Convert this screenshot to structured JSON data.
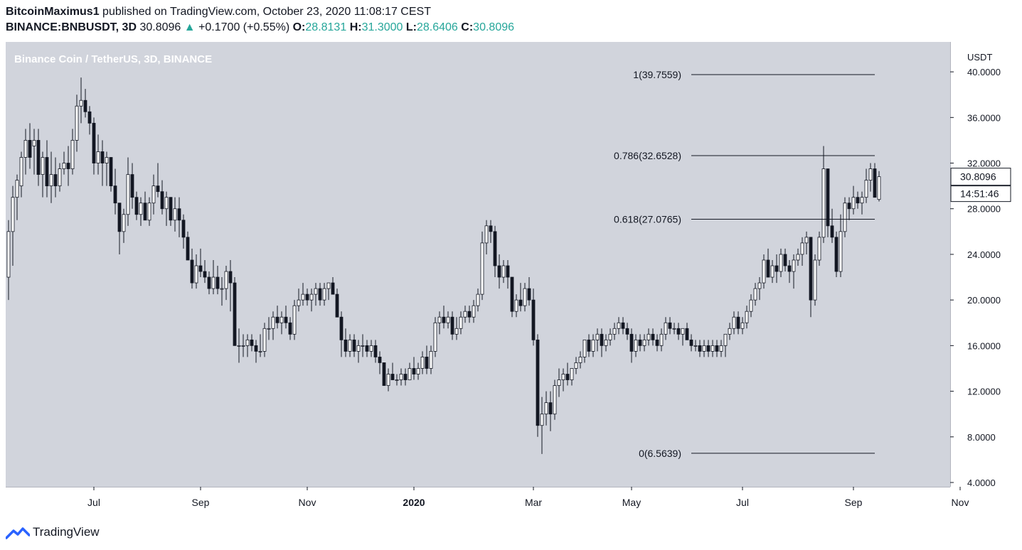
{
  "header": {
    "author": "BitcoinMaximus1",
    "published": "published on TradingView.com, October 23, 2020 11:08:17 CEST",
    "symbol": "BINANCE:BNBUSDT, 3D",
    "last": "30.8096",
    "arrow": "▲",
    "change": "+0.1700 (+0.55%)",
    "o_label": "O:",
    "o_value": "28.8131",
    "h_label": "H:",
    "h_value": "31.3000",
    "l_label": "L:",
    "l_value": "28.6406",
    "c_label": "C:",
    "c_value": "30.8096"
  },
  "footer": {
    "brand": "TradingView"
  },
  "colors": {
    "plot_bg": "#d1d4dc",
    "axis_bg": "#ffffff",
    "candle_up": "#ffffff",
    "candle_down": "#131722",
    "wick": "#131722",
    "text": "#131722",
    "legend_text": "#ffffff",
    "ohlc_value": "#26a69a"
  },
  "chart_data": {
    "type": "candlestick",
    "legend_title": "Binance Coin / TetherUS, 3D, BINANCE",
    "currency": "USDT",
    "ylim": [
      4,
      42
    ],
    "y_ticks": [
      4,
      8,
      12,
      16,
      20,
      24,
      28,
      32,
      36,
      40
    ],
    "y_tick_labels": [
      "4.0000",
      "8.0000",
      "12.0000",
      "16.0000",
      "20.0000",
      "24.0000",
      "28.0000",
      "32.0000",
      "36.0000",
      "40.0000"
    ],
    "x_tick_labels": [
      "Jul",
      "Sep",
      "Nov",
      "2020",
      "Mar",
      "May",
      "Jul",
      "Sep",
      "Nov"
    ],
    "x_tick_bar_index": [
      20,
      45,
      70,
      95,
      123,
      146,
      172,
      198,
      223
    ],
    "price_label": "30.8096",
    "countdown_label": "14:51:46",
    "fib_levels": [
      {
        "label": "1(39.7559)",
        "value": 39.7559
      },
      {
        "label": "0.786(32.6528)",
        "value": 32.6528
      },
      {
        "label": "0.618(27.0765)",
        "value": 27.0765
      },
      {
        "label": "0(6.5639)",
        "value": 6.5639
      }
    ],
    "fib_start_bar": 160,
    "fib_end_bar": 203,
    "candles": [
      [
        22.0,
        27.0,
        20.0,
        26.0
      ],
      [
        26.0,
        30.0,
        23.0,
        29.0
      ],
      [
        29.0,
        31.0,
        27.0,
        30.5
      ],
      [
        30.0,
        33.0,
        29.0,
        32.5
      ],
      [
        32.5,
        35.0,
        31.0,
        34.0
      ],
      [
        34.0,
        35.5,
        31.5,
        32.5
      ],
      [
        33.5,
        35.0,
        31.0,
        34.0
      ],
      [
        34.0,
        35.0,
        30.0,
        31.0
      ],
      [
        31.0,
        33.0,
        29.0,
        32.5
      ],
      [
        32.5,
        34.0,
        29.0,
        30.0
      ],
      [
        30.0,
        33.0,
        28.5,
        31.0
      ],
      [
        31.0,
        32.5,
        29.0,
        30.0
      ],
      [
        30.0,
        32.0,
        29.5,
        31.5
      ],
      [
        31.5,
        33.0,
        31.0,
        32.0
      ],
      [
        32.0,
        33.5,
        30.0,
        31.5
      ],
      [
        31.5,
        35.0,
        31.0,
        34.0
      ],
      [
        34.0,
        38.0,
        33.0,
        37.0
      ],
      [
        37.0,
        39.5,
        35.5,
        37.5
      ],
      [
        37.5,
        38.5,
        36.0,
        36.5
      ],
      [
        36.5,
        37.0,
        34.5,
        35.5
      ],
      [
        35.5,
        36.0,
        31.0,
        32.0
      ],
      [
        32.0,
        34.5,
        31.0,
        33.0
      ],
      [
        33.0,
        34.0,
        30.0,
        32.0
      ],
      [
        32.0,
        33.0,
        30.0,
        32.5
      ],
      [
        32.5,
        32.5,
        29.5,
        30.0
      ],
      [
        30.0,
        31.5,
        27.5,
        28.5
      ],
      [
        28.5,
        28.5,
        24.0,
        26.0
      ],
      [
        26.0,
        28.0,
        25.0,
        27.5
      ],
      [
        27.5,
        32.5,
        26.5,
        31.0
      ],
      [
        31.0,
        32.0,
        28.0,
        29.0
      ],
      [
        29.0,
        29.5,
        27.0,
        27.5
      ],
      [
        27.5,
        29.0,
        26.5,
        28.5
      ],
      [
        28.5,
        29.5,
        27.0,
        27.0
      ],
      [
        27.0,
        29.0,
        26.5,
        28.5
      ],
      [
        28.5,
        31.0,
        27.5,
        30.0
      ],
      [
        30.0,
        32.0,
        29.0,
        29.5
      ],
      [
        29.5,
        30.5,
        27.5,
        28.0
      ],
      [
        28.0,
        29.5,
        26.5,
        29.0
      ],
      [
        29.0,
        29.0,
        26.5,
        27.0
      ],
      [
        27.0,
        29.0,
        26.0,
        28.0
      ],
      [
        28.0,
        29.0,
        25.5,
        27.0
      ],
      [
        27.0,
        27.5,
        24.5,
        25.5
      ],
      [
        25.5,
        26.0,
        23.5,
        23.5
      ],
      [
        23.5,
        24.5,
        21.0,
        21.5
      ],
      [
        21.5,
        24.0,
        21.0,
        23.0
      ],
      [
        23.0,
        24.5,
        22.0,
        22.5
      ],
      [
        22.5,
        23.5,
        21.5,
        22.0
      ],
      [
        22.0,
        22.5,
        20.5,
        21.0
      ],
      [
        21.0,
        23.5,
        20.5,
        22.0
      ],
      [
        22.0,
        23.0,
        20.5,
        21.0
      ],
      [
        21.0,
        22.0,
        19.5,
        21.0
      ],
      [
        21.0,
        23.0,
        20.0,
        22.5
      ],
      [
        22.5,
        23.5,
        19.0,
        21.5
      ],
      [
        21.5,
        22.0,
        16.0,
        16.0
      ],
      [
        16.0,
        17.5,
        14.5,
        16.0
      ],
      [
        16.0,
        17.0,
        15.0,
        16.0
      ],
      [
        16.0,
        17.0,
        15.0,
        16.5
      ],
      [
        16.5,
        17.0,
        15.5,
        16.0
      ],
      [
        16.0,
        16.5,
        14.5,
        15.5
      ],
      [
        15.5,
        17.0,
        15.0,
        15.5
      ],
      [
        15.5,
        18.0,
        15.0,
        17.5
      ],
      [
        17.5,
        18.5,
        16.5,
        17.5
      ],
      [
        17.5,
        19.0,
        16.5,
        18.5
      ],
      [
        18.5,
        19.5,
        17.5,
        18.0
      ],
      [
        18.0,
        19.0,
        17.0,
        18.5
      ],
      [
        18.5,
        19.5,
        17.5,
        18.0
      ],
      [
        18.0,
        18.5,
        16.5,
        17.0
      ],
      [
        17.0,
        20.0,
        16.5,
        19.5
      ],
      [
        19.5,
        21.0,
        19.0,
        20.0
      ],
      [
        20.0,
        21.5,
        19.5,
        20.5
      ],
      [
        20.5,
        21.0,
        19.5,
        20.0
      ],
      [
        20.0,
        21.0,
        19.0,
        20.5
      ],
      [
        20.5,
        21.5,
        19.5,
        21.0
      ],
      [
        21.0,
        21.5,
        19.5,
        20.0
      ],
      [
        20.0,
        21.5,
        19.5,
        21.0
      ],
      [
        21.0,
        21.5,
        20.0,
        21.5
      ],
      [
        21.5,
        22.0,
        20.5,
        20.5
      ],
      [
        20.5,
        21.0,
        18.5,
        18.5
      ],
      [
        18.5,
        19.0,
        15.0,
        16.5
      ],
      [
        16.5,
        17.5,
        15.0,
        15.5
      ],
      [
        15.5,
        17.0,
        15.0,
        16.5
      ],
      [
        16.5,
        17.0,
        15.0,
        15.5
      ],
      [
        15.5,
        16.5,
        14.5,
        16.0
      ],
      [
        16.0,
        17.0,
        15.0,
        16.0
      ],
      [
        16.0,
        16.5,
        15.0,
        15.5
      ],
      [
        15.5,
        16.5,
        15.0,
        16.0
      ],
      [
        16.0,
        16.5,
        14.5,
        15.0
      ],
      [
        15.0,
        15.5,
        13.5,
        14.5
      ],
      [
        14.5,
        14.5,
        12.5,
        12.5
      ],
      [
        12.5,
        14.0,
        12.0,
        13.5
      ],
      [
        13.5,
        14.5,
        13.0,
        13.0
      ],
      [
        13.0,
        13.5,
        12.5,
        13.0
      ],
      [
        13.0,
        14.0,
        12.5,
        13.5
      ],
      [
        13.5,
        14.0,
        12.5,
        13.0
      ],
      [
        13.0,
        14.5,
        13.0,
        14.0
      ],
      [
        14.0,
        15.0,
        13.0,
        13.5
      ],
      [
        13.5,
        14.5,
        13.0,
        14.0
      ],
      [
        14.0,
        15.5,
        13.5,
        15.0
      ],
      [
        15.0,
        16.0,
        13.5,
        14.0
      ],
      [
        14.0,
        16.0,
        13.5,
        15.5
      ],
      [
        15.5,
        18.5,
        15.0,
        18.0
      ],
      [
        18.0,
        19.0,
        17.0,
        18.5
      ],
      [
        18.5,
        19.5,
        17.5,
        18.0
      ],
      [
        18.0,
        19.0,
        17.5,
        18.5
      ],
      [
        18.5,
        19.0,
        16.5,
        17.0
      ],
      [
        17.0,
        18.5,
        16.5,
        17.5
      ],
      [
        17.5,
        19.0,
        17.0,
        18.5
      ],
      [
        18.5,
        19.5,
        18.0,
        19.0
      ],
      [
        19.0,
        19.5,
        18.0,
        18.5
      ],
      [
        18.5,
        20.0,
        18.0,
        19.5
      ],
      [
        19.5,
        21.0,
        19.0,
        20.5
      ],
      [
        20.5,
        26.0,
        20.0,
        25.0
      ],
      [
        25.0,
        27.0,
        24.0,
        26.5
      ],
      [
        26.5,
        27.0,
        25.0,
        26.0
      ],
      [
        26.0,
        26.5,
        22.0,
        23.0
      ],
      [
        23.0,
        24.0,
        21.0,
        22.0
      ],
      [
        22.0,
        23.5,
        21.5,
        23.0
      ],
      [
        23.0,
        23.5,
        21.0,
        22.0
      ],
      [
        22.0,
        22.0,
        18.5,
        19.0
      ],
      [
        19.0,
        20.5,
        18.5,
        20.0
      ],
      [
        20.0,
        21.5,
        19.0,
        19.5
      ],
      [
        19.5,
        21.5,
        19.0,
        21.0
      ],
      [
        21.0,
        22.0,
        19.5,
        20.0
      ],
      [
        20.0,
        21.0,
        16.0,
        16.5
      ],
      [
        16.5,
        17.0,
        8.0,
        9.0
      ],
      [
        9.0,
        11.5,
        6.5,
        10.0
      ],
      [
        10.0,
        12.0,
        9.0,
        11.0
      ],
      [
        11.0,
        12.0,
        8.5,
        10.0
      ],
      [
        10.0,
        13.0,
        9.5,
        12.5
      ],
      [
        12.5,
        14.0,
        11.5,
        13.0
      ],
      [
        13.0,
        14.0,
        12.0,
        13.5
      ],
      [
        13.5,
        14.5,
        12.5,
        13.0
      ],
      [
        13.0,
        14.0,
        12.5,
        14.0
      ],
      [
        14.0,
        15.0,
        13.5,
        14.5
      ],
      [
        14.5,
        15.5,
        14.0,
        15.0
      ],
      [
        15.0,
        16.5,
        14.5,
        16.5
      ],
      [
        16.5,
        17.0,
        15.0,
        15.5
      ],
      [
        15.5,
        17.0,
        15.0,
        16.5
      ],
      [
        16.5,
        17.5,
        15.5,
        17.0
      ],
      [
        17.0,
        17.5,
        15.0,
        16.0
      ],
      [
        16.0,
        17.0,
        15.5,
        16.5
      ],
      [
        16.5,
        17.5,
        16.0,
        17.0
      ],
      [
        17.0,
        18.0,
        16.5,
        17.5
      ],
      [
        17.5,
        18.5,
        17.0,
        18.0
      ],
      [
        18.0,
        18.5,
        17.0,
        17.5
      ],
      [
        17.5,
        18.0,
        16.5,
        17.0
      ],
      [
        17.0,
        17.5,
        14.5,
        15.5
      ],
      [
        15.5,
        17.0,
        15.0,
        16.5
      ],
      [
        16.5,
        17.0,
        15.5,
        16.0
      ],
      [
        16.0,
        17.0,
        15.5,
        16.5
      ],
      [
        16.5,
        17.5,
        16.0,
        17.0
      ],
      [
        17.0,
        17.5,
        16.0,
        16.5
      ],
      [
        16.5,
        17.0,
        15.5,
        16.0
      ],
      [
        16.0,
        17.5,
        15.5,
        17.0
      ],
      [
        17.0,
        18.5,
        16.5,
        18.0
      ],
      [
        18.0,
        18.5,
        17.0,
        17.5
      ],
      [
        17.5,
        18.0,
        17.0,
        17.5
      ],
      [
        17.5,
        18.0,
        16.5,
        17.0
      ],
      [
        17.0,
        17.5,
        16.0,
        17.5
      ],
      [
        17.5,
        18.0,
        16.5,
        16.5
      ],
      [
        16.5,
        17.0,
        15.5,
        16.0
      ],
      [
        16.0,
        16.5,
        15.5,
        16.0
      ],
      [
        16.0,
        16.5,
        15.0,
        15.5
      ],
      [
        15.5,
        16.5,
        15.0,
        16.0
      ],
      [
        16.0,
        16.5,
        15.0,
        15.5
      ],
      [
        15.5,
        16.5,
        15.0,
        16.0
      ],
      [
        16.0,
        16.5,
        15.0,
        15.5
      ],
      [
        15.5,
        16.5,
        15.0,
        16.0
      ],
      [
        16.0,
        17.0,
        15.0,
        17.0
      ],
      [
        17.0,
        18.0,
        16.5,
        17.5
      ],
      [
        17.5,
        19.0,
        17.0,
        18.5
      ],
      [
        18.5,
        19.0,
        17.0,
        17.5
      ],
      [
        17.5,
        18.5,
        17.0,
        18.0
      ],
      [
        18.0,
        19.5,
        17.5,
        19.0
      ],
      [
        19.0,
        20.5,
        18.5,
        20.0
      ],
      [
        20.0,
        21.5,
        19.5,
        21.0
      ],
      [
        21.0,
        22.0,
        20.0,
        21.5
      ],
      [
        21.5,
        24.0,
        21.0,
        23.5
      ],
      [
        23.5,
        24.5,
        22.0,
        22.0
      ],
      [
        22.0,
        23.5,
        21.5,
        23.0
      ],
      [
        23.0,
        24.0,
        21.5,
        22.5
      ],
      [
        22.5,
        24.5,
        22.0,
        24.0
      ],
      [
        24.0,
        24.5,
        22.5,
        23.0
      ],
      [
        23.0,
        23.5,
        21.5,
        22.5
      ],
      [
        22.5,
        24.0,
        21.0,
        23.5
      ],
      [
        23.5,
        24.5,
        23.0,
        24.0
      ],
      [
        24.0,
        25.5,
        23.0,
        25.0
      ],
      [
        25.0,
        26.0,
        24.0,
        25.5
      ],
      [
        25.5,
        25.5,
        18.5,
        20.0
      ],
      [
        20.0,
        24.0,
        19.5,
        23.5
      ],
      [
        23.5,
        26.0,
        23.0,
        25.5
      ],
      [
        25.5,
        33.5,
        25.0,
        31.5
      ],
      [
        31.5,
        31.5,
        25.5,
        26.5
      ],
      [
        26.5,
        28.0,
        25.0,
        25.5
      ],
      [
        25.5,
        26.0,
        22.0,
        22.5
      ],
      [
        22.5,
        27.5,
        22.0,
        26.0
      ],
      [
        26.0,
        29.0,
        25.5,
        28.5
      ],
      [
        28.5,
        29.0,
        27.0,
        28.0
      ],
      [
        28.0,
        30.0,
        27.5,
        29.0
      ],
      [
        29.0,
        29.5,
        28.0,
        28.5
      ],
      [
        28.5,
        29.5,
        27.5,
        29.0
      ],
      [
        29.0,
        31.5,
        28.5,
        30.5
      ],
      [
        30.5,
        32.0,
        29.5,
        31.5
      ],
      [
        31.5,
        32.0,
        29.0,
        29.0
      ],
      [
        28.8131,
        31.3,
        28.6406,
        30.8096
      ]
    ]
  }
}
